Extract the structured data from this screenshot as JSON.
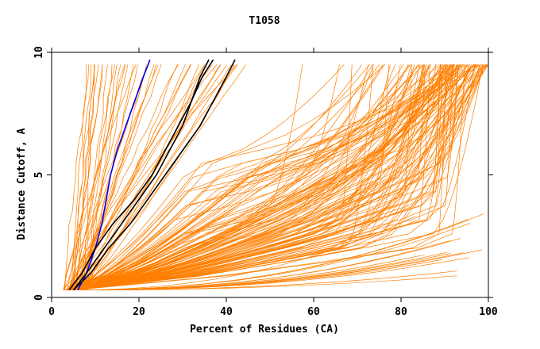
{
  "chart_data": {
    "type": "line",
    "title": "T1058",
    "xlabel": "Percent of Residues (CA)",
    "ylabel": "Distance Cutoff, A",
    "xlim": [
      0,
      100
    ],
    "ylim": [
      0,
      10
    ],
    "xticks": [
      0,
      20,
      40,
      60,
      80,
      100
    ],
    "yticks": [
      0,
      5,
      10
    ],
    "grid": false,
    "colors": {
      "bundle": "#ff7f00",
      "highlight": "#000000",
      "reference": "#0000ff"
    },
    "series": [
      {
        "x": [
          6,
          8,
          10,
          11.5,
          12.5,
          13.5,
          15,
          17,
          19,
          21,
          22.5
        ],
        "y": [
          0.3,
          1,
          2,
          3,
          4,
          5,
          6,
          7,
          8,
          9,
          9.7
        ]
      },
      {
        "x": [
          4,
          7,
          10,
          14,
          19,
          23,
          26,
          29,
          32,
          34.5,
          37
        ],
        "y": [
          0.3,
          1,
          2,
          3,
          4,
          5,
          6,
          7,
          8,
          9,
          9.7
        ]
      },
      {
        "x": [
          5,
          8,
          12,
          16,
          20,
          24,
          27,
          30,
          32,
          34,
          36
        ],
        "y": [
          0.3,
          1,
          2,
          3,
          4,
          5,
          6,
          7,
          8,
          9,
          9.7
        ]
      },
      {
        "x": [
          5,
          9,
          13,
          18,
          22,
          26,
          30,
          34,
          37,
          40,
          42
        ],
        "y": [
          0.3,
          1,
          2,
          3,
          4,
          5,
          6,
          7,
          8,
          9,
          9.7
        ]
      }
    ],
    "bundle_ranges": {
      "steep": {
        "count": 45,
        "x_start": [
          2.5,
          8
        ],
        "x_end": [
          8,
          45
        ],
        "y_end": 9.5
      },
      "gentle": {
        "count": 130,
        "x_start": [
          3,
          6
        ],
        "x_mid": [
          30,
          92
        ],
        "x_end": [
          55,
          100
        ],
        "y_end": 9.5
      },
      "low": {
        "count": 15,
        "x_start": [
          4,
          6
        ],
        "x_end": [
          80,
          99
        ],
        "y_end": 3.5
      }
    }
  }
}
